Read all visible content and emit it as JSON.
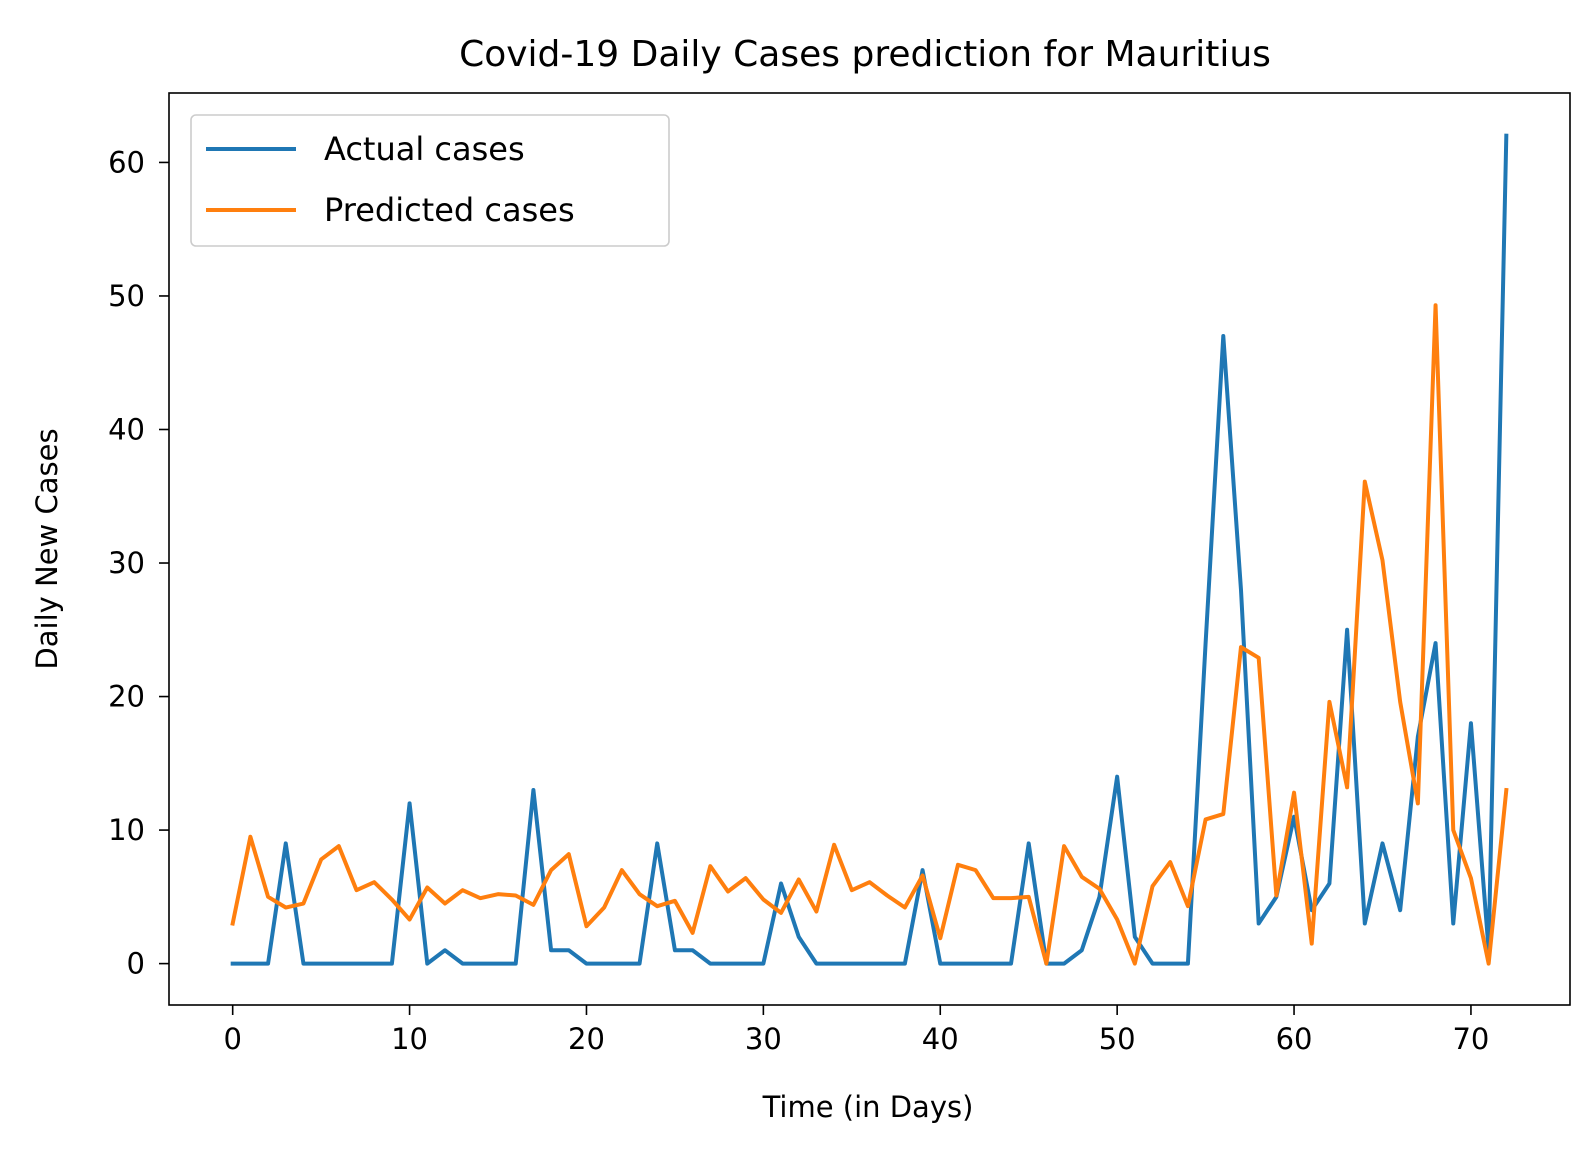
{
  "chart_data": {
    "type": "line",
    "title": "Covid-19 Daily Cases prediction for Mauritius",
    "xlabel": "Time (in Days)",
    "ylabel": "Daily New Cases",
    "xlim": [
      -3.6,
      75.6
    ],
    "ylim": [
      -3.1,
      65.2
    ],
    "xticks": [
      0,
      10,
      20,
      30,
      40,
      50,
      60,
      70
    ],
    "yticks": [
      0,
      10,
      20,
      30,
      40,
      50,
      60
    ],
    "grid": false,
    "legend_position": "upper-left",
    "x": [
      0,
      1,
      2,
      3,
      4,
      5,
      6,
      7,
      8,
      9,
      10,
      11,
      12,
      13,
      14,
      15,
      16,
      17,
      18,
      19,
      20,
      21,
      22,
      23,
      24,
      25,
      26,
      27,
      28,
      29,
      30,
      31,
      32,
      33,
      34,
      35,
      36,
      37,
      38,
      39,
      40,
      41,
      42,
      43,
      44,
      45,
      46,
      47,
      48,
      49,
      50,
      51,
      52,
      53,
      54,
      55,
      56,
      57,
      58,
      59,
      60,
      61,
      62,
      63,
      64,
      65,
      66,
      67,
      68,
      69,
      70,
      71,
      72
    ],
    "series": [
      {
        "name": "Actual cases",
        "color": "#1f77b4",
        "values": [
          0,
          0,
          0,
          9,
          0,
          0,
          0,
          0,
          0,
          0,
          12,
          0,
          1,
          0,
          0,
          0,
          0,
          13,
          1,
          1,
          0,
          0,
          0,
          0,
          9,
          1,
          1,
          0,
          0,
          0,
          0,
          6,
          2,
          0,
          0,
          0,
          0,
          0,
          0,
          7,
          0,
          0,
          0,
          0,
          0,
          9,
          0,
          0,
          1,
          5,
          14,
          2,
          0,
          0,
          0,
          24,
          47,
          28,
          3,
          5,
          11,
          4,
          6,
          25,
          3,
          9,
          4,
          17,
          24,
          3,
          18,
          1,
          62
        ]
      },
      {
        "name": "Predicted cases",
        "color": "#ff7f0e",
        "values": [
          3.0,
          9.5,
          5.0,
          4.2,
          4.5,
          7.8,
          8.8,
          5.5,
          6.1,
          4.8,
          3.3,
          5.7,
          4.5,
          5.5,
          4.9,
          5.2,
          5.1,
          4.4,
          7.0,
          8.2,
          2.8,
          4.2,
          7.0,
          5.2,
          4.3,
          4.7,
          2.3,
          7.3,
          5.4,
          6.4,
          4.8,
          3.8,
          6.3,
          3.9,
          8.9,
          5.5,
          6.1,
          5.1,
          4.2,
          6.6,
          1.9,
          7.4,
          7.0,
          4.9,
          4.9,
          5.0,
          0.0,
          8.8,
          6.5,
          5.6,
          3.3,
          0.0,
          5.8,
          7.6,
          4.3,
          10.8,
          11.2,
          23.7,
          22.9,
          5.1,
          12.8,
          1.5,
          19.6,
          13.2,
          36.1,
          30.2,
          19.6,
          12.0,
          49.3,
          10.0,
          6.4,
          0.0,
          13.0
        ]
      }
    ]
  }
}
